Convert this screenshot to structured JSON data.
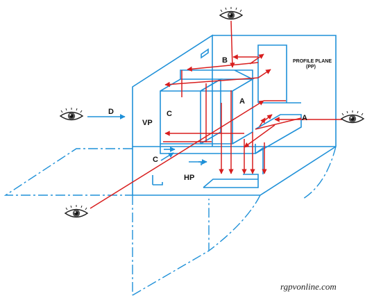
{
  "labels": {
    "d": "D",
    "vp": "VP",
    "c_front": "C",
    "a_top": "A",
    "b": "B",
    "a_side": "A",
    "c_lower": "C",
    "hp": "HP",
    "profile_plane": "PROFILE PLANE",
    "profile_plane_abbr": "(PP)"
  },
  "watermark": "rgpvonline.com",
  "colors": {
    "plane": "#1e90d8",
    "projector": "#d81e1e",
    "text": "#111111"
  },
  "icons": [
    "eye-icon-top",
    "eye-icon-left",
    "eye-icon-right",
    "eye-icon-bottom-left"
  ]
}
